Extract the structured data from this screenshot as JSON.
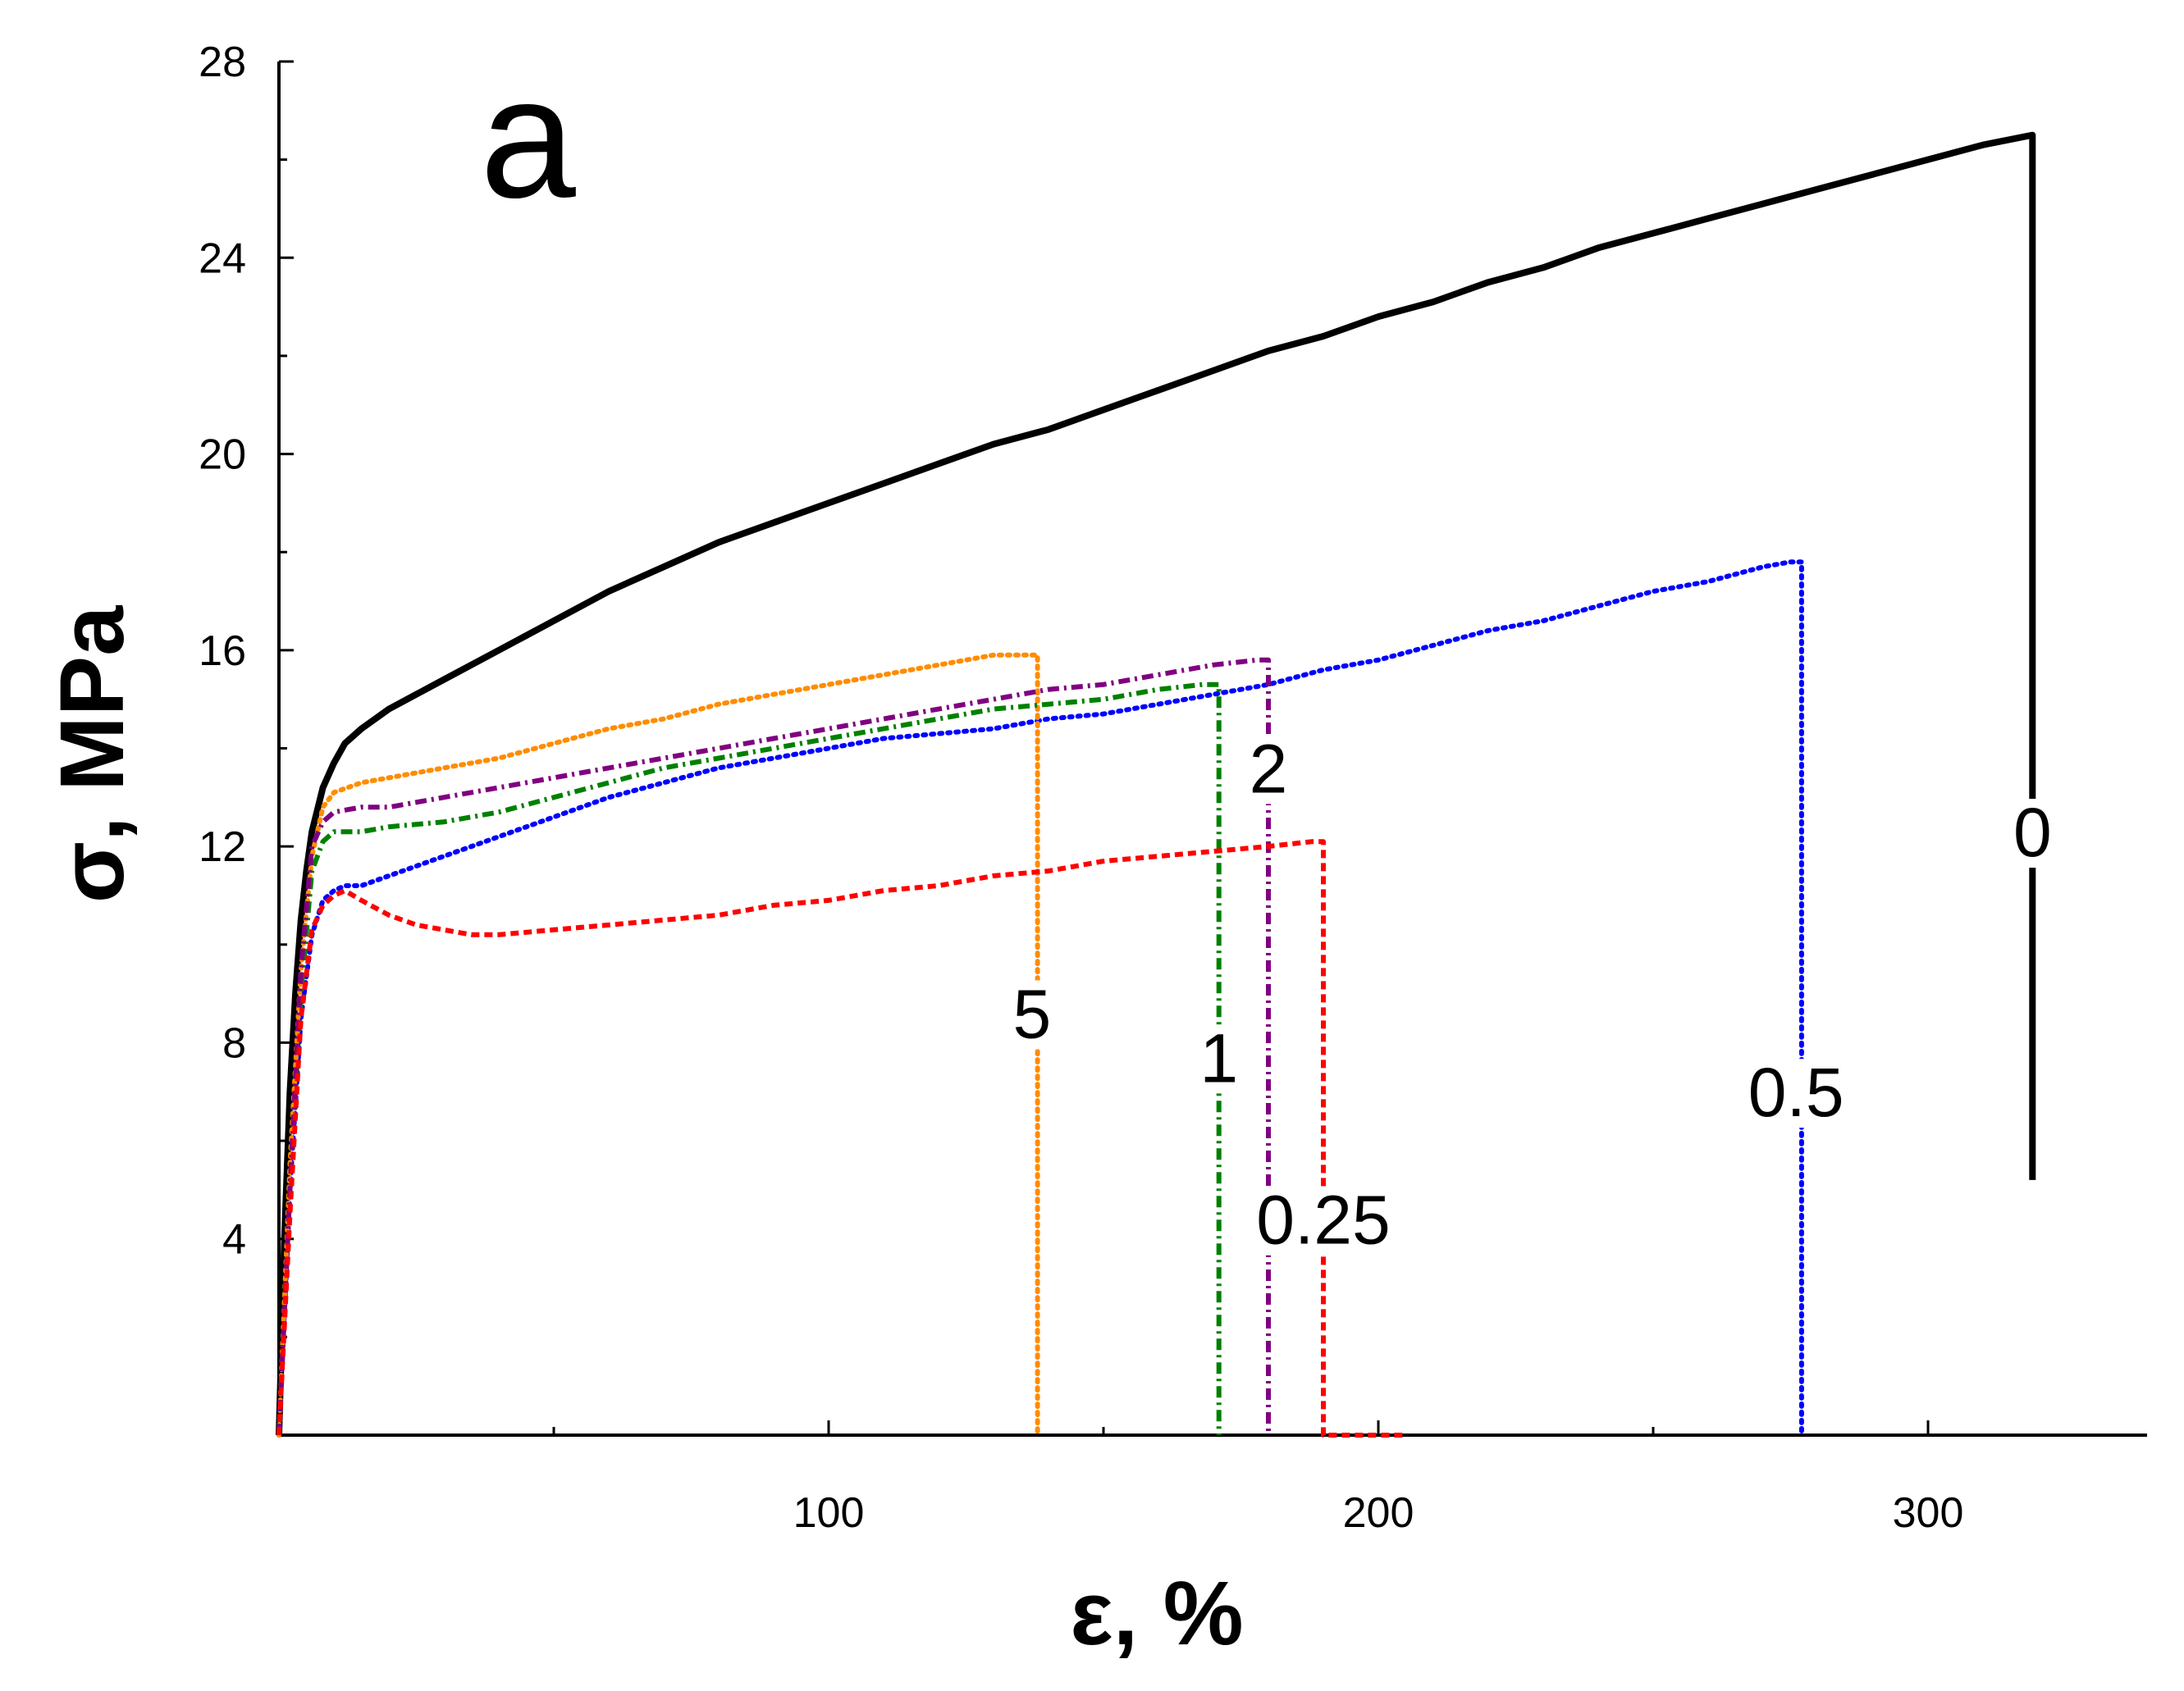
{
  "chart_data": {
    "type": "line",
    "panel_label": "a",
    "xlabel": "ε, %",
    "ylabel": "σ, MPa",
    "xlim": [
      0,
      340
    ],
    "ylim": [
      0,
      28
    ],
    "x_ticks": [
      100,
      200,
      300
    ],
    "x_ticks_all": [
      50,
      100,
      150,
      200,
      250,
      300
    ],
    "y_ticks": [
      4,
      8,
      12,
      16,
      20,
      24,
      28
    ],
    "y_ticks_all": [
      2,
      4,
      6,
      8,
      10,
      12,
      14,
      16,
      18,
      20,
      22,
      24,
      26,
      28
    ],
    "series": [
      {
        "name": "0",
        "color": "#000000",
        "dash": "solid",
        "x": [
          0,
          1,
          2,
          3,
          4,
          5,
          6,
          8,
          10,
          12,
          15,
          20,
          30,
          40,
          50,
          60,
          70,
          80,
          90,
          100,
          110,
          120,
          130,
          140,
          150,
          160,
          170,
          180,
          190,
          200,
          210,
          220,
          230,
          240,
          250,
          260,
          270,
          280,
          290,
          300,
          310,
          319
        ],
        "y": [
          0,
          4,
          7,
          9,
          10.5,
          11.5,
          12.3,
          13.2,
          13.7,
          14.1,
          14.4,
          14.8,
          15.4,
          16.0,
          16.6,
          17.2,
          17.7,
          18.2,
          18.6,
          19.0,
          19.4,
          19.8,
          20.2,
          20.5,
          20.9,
          21.3,
          21.7,
          22.1,
          22.4,
          22.8,
          23.1,
          23.5,
          23.8,
          24.2,
          24.5,
          24.8,
          25.1,
          25.4,
          25.7,
          26.0,
          26.3,
          26.5
        ],
        "drop": [
          319,
          5.2
        ],
        "label": "0",
        "label_pos": [
          319,
          11.8
        ]
      },
      {
        "name": "0.5",
        "color": "#0000ff",
        "dash": "dotted",
        "x": [
          0,
          2,
          4,
          6,
          8,
          10,
          12,
          15,
          20,
          30,
          40,
          50,
          60,
          70,
          80,
          90,
          100,
          110,
          120,
          130,
          140,
          150,
          160,
          170,
          180,
          190,
          200,
          210,
          220,
          230,
          240,
          250,
          260,
          270,
          275
        ],
        "y": [
          0,
          5,
          8.5,
          10.2,
          10.9,
          11.1,
          11.2,
          11.2,
          11.4,
          11.8,
          12.2,
          12.6,
          13.0,
          13.3,
          13.6,
          13.8,
          14.0,
          14.2,
          14.3,
          14.4,
          14.6,
          14.7,
          14.9,
          15.1,
          15.3,
          15.6,
          15.8,
          16.1,
          16.4,
          16.6,
          16.9,
          17.2,
          17.4,
          17.7,
          17.8
        ],
        "drop": [
          277,
          0
        ],
        "label": "0.5",
        "label_pos": [
          276,
          6.5
        ]
      },
      {
        "name": "5",
        "color": "#ff8c00",
        "dash": "dotted",
        "x": [
          0,
          2,
          4,
          6,
          8,
          10,
          15,
          20,
          30,
          40,
          50,
          60,
          70,
          80,
          90,
          100,
          110,
          120,
          130,
          136
        ],
        "y": [
          0,
          5.5,
          9.5,
          11.8,
          12.8,
          13.1,
          13.3,
          13.4,
          13.6,
          13.8,
          14.1,
          14.4,
          14.6,
          14.9,
          15.1,
          15.3,
          15.5,
          15.7,
          15.9,
          15.9
        ],
        "drop": [
          138,
          0
        ],
        "label": "5",
        "label_pos": [
          137,
          8.1
        ]
      },
      {
        "name": "1",
        "color": "#008000",
        "dash": "dashdot",
        "x": [
          0,
          2,
          4,
          6,
          8,
          10,
          15,
          20,
          30,
          40,
          50,
          60,
          70,
          80,
          90,
          100,
          110,
          120,
          130,
          140,
          150,
          160,
          168
        ],
        "y": [
          0,
          5,
          9,
          11.5,
          12.1,
          12.3,
          12.3,
          12.4,
          12.5,
          12.7,
          13.0,
          13.3,
          13.6,
          13.8,
          14.0,
          14.2,
          14.4,
          14.6,
          14.8,
          14.9,
          15.0,
          15.2,
          15.3
        ],
        "drop": [
          171,
          0
        ],
        "label": "1",
        "label_pos": [
          171,
          7.2
        ]
      },
      {
        "name": "2",
        "color": "#800080",
        "dash": "dashdot",
        "x": [
          0,
          2,
          4,
          6,
          8,
          10,
          15,
          20,
          30,
          40,
          50,
          60,
          70,
          80,
          90,
          100,
          110,
          120,
          130,
          140,
          150,
          160,
          170,
          178
        ],
        "y": [
          0,
          5,
          9.5,
          12.0,
          12.5,
          12.7,
          12.8,
          12.8,
          13.0,
          13.2,
          13.4,
          13.6,
          13.8,
          14.0,
          14.2,
          14.4,
          14.6,
          14.8,
          15.0,
          15.2,
          15.3,
          15.5,
          15.7,
          15.8
        ],
        "drop": [
          180,
          0
        ],
        "label": "2",
        "label_pos": [
          180,
          13.1
        ]
      },
      {
        "name": "0.25",
        "color": "#ff0000",
        "dash": "dashed",
        "x": [
          0,
          2,
          4,
          6,
          8,
          10,
          12,
          15,
          20,
          25,
          30,
          35,
          40,
          50,
          60,
          70,
          80,
          90,
          100,
          110,
          120,
          130,
          140,
          150,
          160,
          170,
          180,
          188
        ],
        "y": [
          0,
          4.5,
          8.5,
          10.3,
          10.8,
          11.0,
          11.1,
          10.9,
          10.6,
          10.4,
          10.3,
          10.2,
          10.2,
          10.3,
          10.4,
          10.5,
          10.6,
          10.8,
          10.9,
          11.1,
          11.2,
          11.4,
          11.5,
          11.7,
          11.8,
          11.9,
          12.0,
          12.1
        ],
        "drop": [
          190,
          0
        ],
        "tail": [
          [
            190,
            0
          ],
          [
            205,
            0
          ]
        ],
        "label": "0.25",
        "label_pos": [
          190,
          3.9
        ]
      }
    ]
  }
}
